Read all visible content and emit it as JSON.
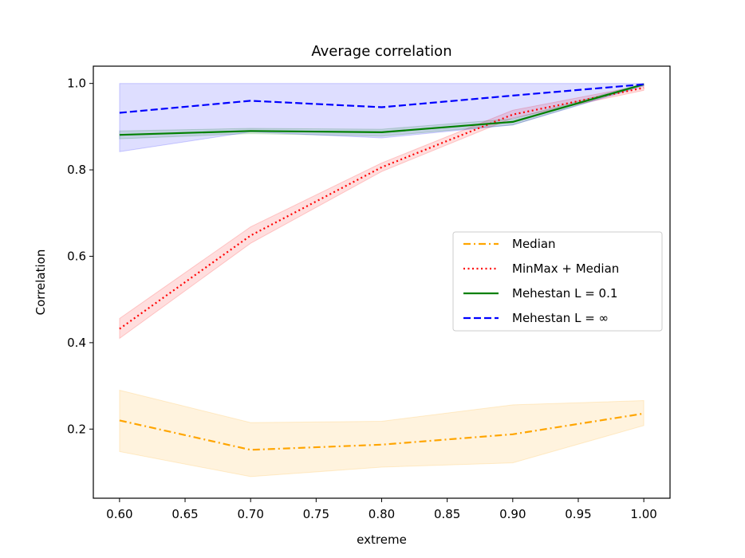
{
  "chart_data": {
    "type": "line",
    "title": "Average correlation",
    "xlabel": "extreme",
    "ylabel": "Correlation",
    "xlim": [
      0.58,
      1.02
    ],
    "ylim": [
      0.04,
      1.04
    ],
    "grid": false,
    "legend_position": "center-right",
    "x_ticks": [
      0.6,
      0.65,
      0.7,
      0.75,
      0.8,
      0.85,
      0.9,
      0.95,
      1.0
    ],
    "x_tick_labels": [
      "0.60",
      "0.65",
      "0.70",
      "0.75",
      "0.80",
      "0.85",
      "0.90",
      "0.95",
      "1.00"
    ],
    "y_ticks": [
      0.2,
      0.4,
      0.6,
      0.8,
      1.0
    ],
    "y_tick_labels": [
      "0.2",
      "0.4",
      "0.6",
      "0.8",
      "1.0"
    ],
    "x": [
      0.6,
      0.7,
      0.8,
      0.9,
      1.0
    ],
    "series": [
      {
        "name": "Median",
        "color": "#ffa500",
        "dash": "dashdot",
        "values": [
          0.22,
          0.152,
          0.164,
          0.188,
          0.236
        ],
        "band_lower": [
          0.148,
          0.09,
          0.112,
          0.122,
          0.208
        ],
        "band_upper": [
          0.29,
          0.215,
          0.218,
          0.256,
          0.266
        ]
      },
      {
        "name": "MinMax +  Median",
        "color": "#ff0000",
        "dash": "dotted",
        "values": [
          0.432,
          0.648,
          0.806,
          0.928,
          0.99
        ],
        "band_lower": [
          0.41,
          0.63,
          0.796,
          0.92,
          0.984
        ],
        "band_upper": [
          0.456,
          0.668,
          0.816,
          0.938,
          0.996
        ]
      },
      {
        "name": "Mehestan  L = 0.1",
        "color": "#008000",
        "dash": "solid",
        "values": [
          0.881,
          0.89,
          0.887,
          0.911,
          0.998
        ],
        "band_lower": [
          0.872,
          0.884,
          0.878,
          0.904,
          0.996
        ],
        "band_upper": [
          0.89,
          0.896,
          0.894,
          0.918,
          1.0
        ]
      },
      {
        "name": "Mehestan  L = ∞",
        "color": "#0000ff",
        "dash": "dashed",
        "values": [
          0.932,
          0.96,
          0.945,
          0.972,
          0.998
        ],
        "band_lower": [
          0.842,
          0.888,
          0.874,
          0.904,
          0.994
        ],
        "band_upper": [
          1.0,
          1.0,
          1.0,
          1.0,
          1.0
        ]
      }
    ]
  }
}
